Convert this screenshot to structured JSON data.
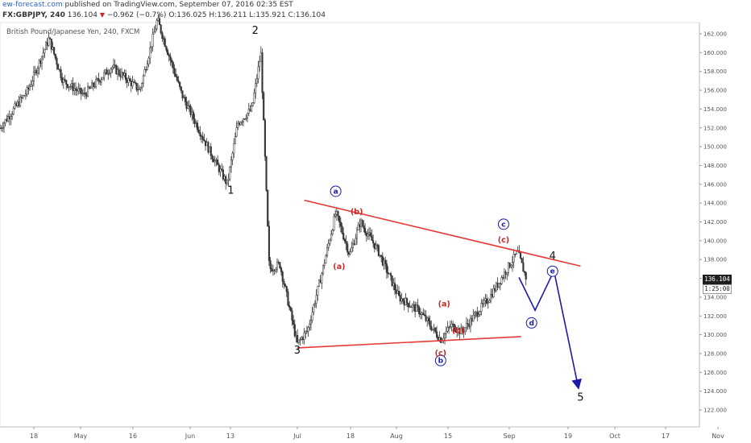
{
  "header": {
    "brand": "ew-forecast.com",
    "published": "published on TradingView.com, September 07, 2016 02:35 EST",
    "symbol": "FX:GBPJPY, 240",
    "last": "136.104",
    "change": "−0.962 (−0.7%)",
    "o_label": "O:",
    "o_value": "136.025",
    "h_label": "H:",
    "h_value": "136.211",
    "l_label": "L:",
    "l_value": "135.921",
    "c_label": "C:",
    "c_value": "136.104"
  },
  "instrument_title": "British Pound/Japanese Yen, 240, FXCM",
  "price_tag": "136.104",
  "time_tag": "1:25:00",
  "colors": {
    "up": "#333333",
    "annot_red": "#c62828",
    "annot_blue": "#1a1aa6",
    "trend": "#e53935"
  },
  "chart_data": {
    "type": "candlestick",
    "title": "British Pound/Japanese Yen, 240, FXCM",
    "ylim": [
      121,
      163
    ],
    "y_ticks": [
      122,
      124,
      126,
      128,
      130,
      132,
      134,
      136,
      138,
      140,
      142,
      144,
      146,
      148,
      150,
      152,
      154,
      156,
      158,
      160,
      162
    ],
    "x_ticks": [
      "18",
      "May",
      "16",
      "Jun",
      "13",
      "Jul",
      "18",
      "Aug",
      "15",
      "Sep",
      "19",
      "Oct",
      "17",
      "Nov"
    ],
    "price_path": [
      {
        "x": 0.0,
        "y": 152.0
      },
      {
        "x": 0.04,
        "y": 156.0
      },
      {
        "x": 0.07,
        "y": 161.5
      },
      {
        "x": 0.09,
        "y": 157.0
      },
      {
        "x": 0.12,
        "y": 155.5
      },
      {
        "x": 0.16,
        "y": 158.5
      },
      {
        "x": 0.2,
        "y": 156.0
      },
      {
        "x": 0.225,
        "y": 163.5
      },
      {
        "x": 0.26,
        "y": 155.5
      },
      {
        "x": 0.3,
        "y": 149.5
      },
      {
        "x": 0.325,
        "y": 146.0
      },
      {
        "x": 0.34,
        "y": 152.5
      },
      {
        "x": 0.36,
        "y": 154.0
      },
      {
        "x": 0.373,
        "y": 160.0
      },
      {
        "x": 0.385,
        "y": 137.0
      },
      {
        "x": 0.4,
        "y": 137.5
      },
      {
        "x": 0.425,
        "y": 129.0
      },
      {
        "x": 0.44,
        "y": 130.5
      },
      {
        "x": 0.46,
        "y": 136.5
      },
      {
        "x": 0.48,
        "y": 143.0
      },
      {
        "x": 0.5,
        "y": 138.5
      },
      {
        "x": 0.515,
        "y": 142.0
      },
      {
        "x": 0.54,
        "y": 139.0
      },
      {
        "x": 0.57,
        "y": 134.0
      },
      {
        "x": 0.6,
        "y": 132.5
      },
      {
        "x": 0.63,
        "y": 129.5
      },
      {
        "x": 0.645,
        "y": 131.0
      },
      {
        "x": 0.66,
        "y": 130.3
      },
      {
        "x": 0.7,
        "y": 134.0
      },
      {
        "x": 0.74,
        "y": 138.8
      },
      {
        "x": 0.752,
        "y": 136.1
      }
    ],
    "wave_labels": [
      {
        "text": "1",
        "x": 0.33,
        "y": 145.0
      },
      {
        "text": "2",
        "x": 0.365,
        "y": 162.0
      },
      {
        "text": "3",
        "x": 0.425,
        "y": 128.0
      },
      {
        "text": "4",
        "x": 0.79,
        "y": 138.0
      },
      {
        "text": "5",
        "x": 0.83,
        "y": 123.0
      },
      {
        "text": "a",
        "x": 0.48,
        "y": 145.0
      },
      {
        "text": "b",
        "x": 0.63,
        "y": 127.0
      },
      {
        "text": "c",
        "x": 0.72,
        "y": 141.5
      },
      {
        "text": "d",
        "x": 0.76,
        "y": 131.0
      },
      {
        "text": "e",
        "x": 0.79,
        "y": 136.5
      },
      {
        "text": "(a)",
        "x": 0.485,
        "y": 137.0
      },
      {
        "text": "(b)",
        "x": 0.51,
        "y": 142.8
      },
      {
        "text": "(a)",
        "x": 0.635,
        "y": 133.0
      },
      {
        "text": "(b)",
        "x": 0.655,
        "y": 130.2
      },
      {
        "text": "(c)",
        "x": 0.63,
        "y": 127.8
      },
      {
        "text": "(c)",
        "x": 0.72,
        "y": 139.8
      }
    ],
    "trendlines": [
      {
        "from": {
          "x": 0.435,
          "y": 144.3
        },
        "to": {
          "x": 0.83,
          "y": 137.3
        }
      },
      {
        "from": {
          "x": 0.425,
          "y": 128.6
        },
        "to": {
          "x": 0.745,
          "y": 129.8
        }
      }
    ],
    "projection": [
      {
        "x": 0.742,
        "y": 136.1
      },
      {
        "x": 0.765,
        "y": 132.6
      },
      {
        "x": 0.792,
        "y": 136.8
      },
      {
        "x": 0.826,
        "y": 124.7
      }
    ]
  }
}
